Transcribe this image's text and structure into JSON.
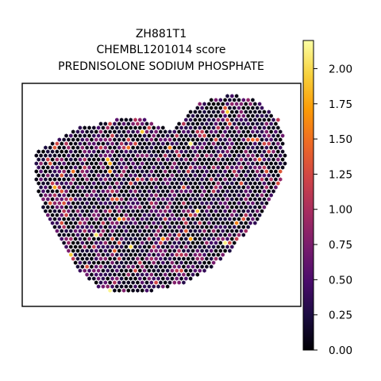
{
  "chart_data": {
    "type": "scatter",
    "title": [
      "ZH881T1",
      "CHEMBL1201014 score",
      "PREDNISOLONE SODIUM PHOSPHATE"
    ],
    "xlabel": "",
    "ylabel": "",
    "grid": false,
    "axis_ticks_visible": false,
    "marker": "hexagonal spot",
    "colormap": "inferno",
    "colormap_stops": [
      "#000004",
      "#1b0c41",
      "#4a0c6b",
      "#781c6d",
      "#a52c60",
      "#cf4446",
      "#ed6925",
      "#fb9b06",
      "#f7d13d",
      "#fcffa4"
    ],
    "colorbar": {
      "range": [
        0.0,
        2.2
      ],
      "ticks": [
        0.0,
        0.25,
        0.5,
        0.75,
        1.0,
        1.25,
        1.5,
        1.75,
        2.0
      ],
      "tick_labels": [
        "0.00",
        "0.25",
        "0.50",
        "0.75",
        "1.00",
        "1.25",
        "1.50",
        "1.75",
        "2.00"
      ],
      "placement": "right"
    },
    "value_distribution": {
      "description_level": "most spots low, scattered higher",
      "max": 2.2,
      "min": 0.0
    }
  }
}
